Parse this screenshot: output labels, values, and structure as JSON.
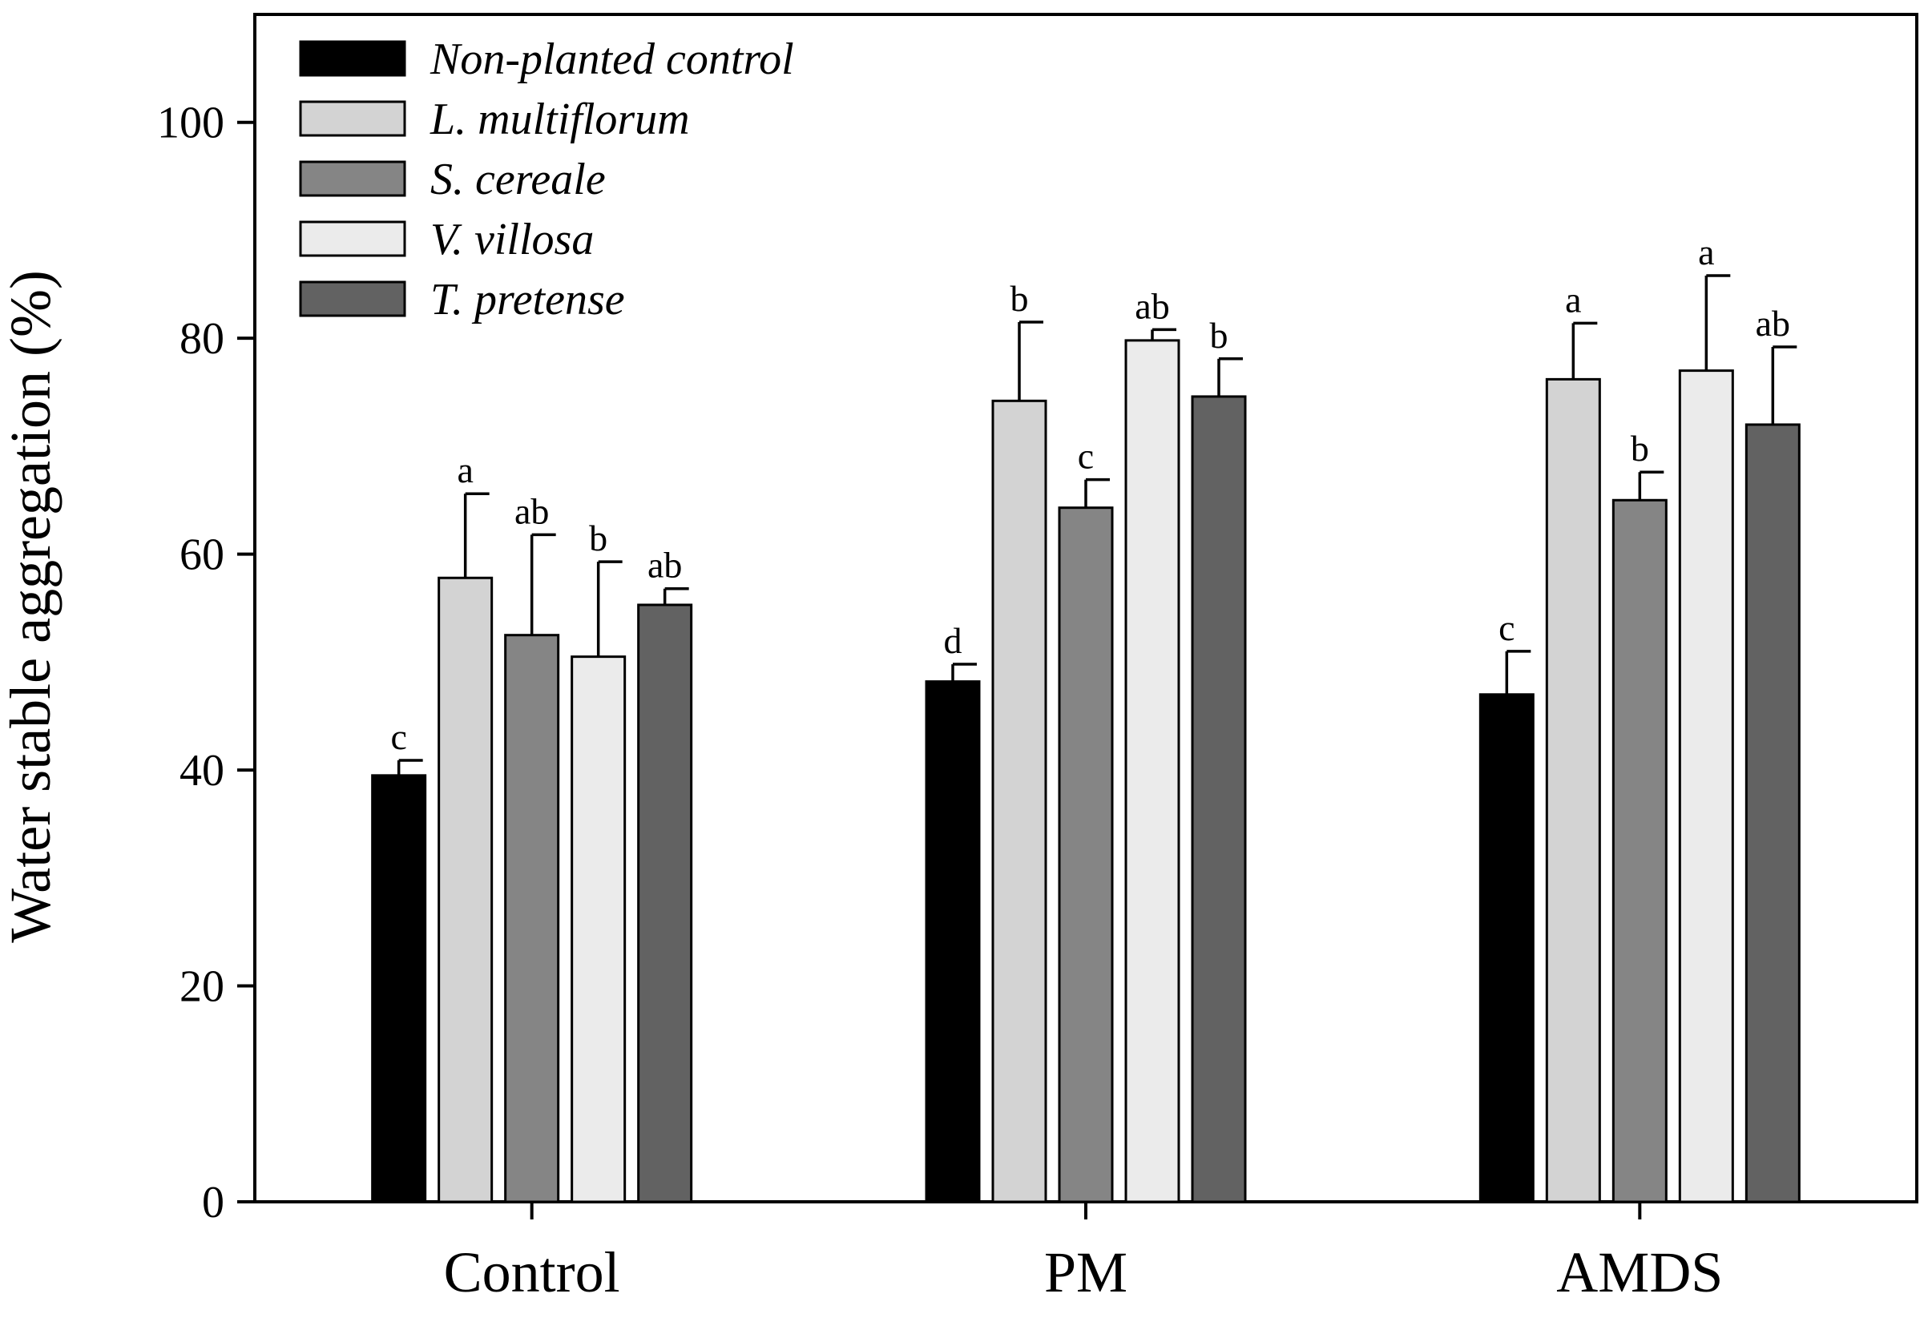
{
  "chart_data": {
    "type": "bar",
    "title": "",
    "xlabel": "",
    "ylabel": "Water stable aggregation (%)",
    "ylim": [
      0,
      110
    ],
    "yticks": [
      0,
      20,
      40,
      60,
      80,
      100
    ],
    "categories": [
      "Control",
      "PM",
      "AMDS"
    ],
    "legend_position": "top-left",
    "series": [
      {
        "name": "Non-planted control",
        "color": "#000000",
        "values": [
          39.5,
          48.2,
          47.0
        ],
        "errors": [
          1.4,
          1.6,
          4.0
        ],
        "letters": [
          "c",
          "d",
          "c"
        ]
      },
      {
        "name": "L. multiflorum",
        "color": "#d3d3d3",
        "values": [
          57.8,
          74.2,
          76.2
        ],
        "errors": [
          7.8,
          7.3,
          5.2
        ],
        "letters": [
          "a",
          "b",
          "a"
        ]
      },
      {
        "name": "S. cereale",
        "color": "#858585",
        "values": [
          52.5,
          64.3,
          65.0
        ],
        "errors": [
          9.3,
          2.6,
          2.6
        ],
        "letters": [
          "ab",
          "c",
          "b"
        ]
      },
      {
        "name": "V. villosa",
        "color": "#ebebeb",
        "values": [
          50.5,
          79.8,
          77.0
        ],
        "errors": [
          8.8,
          1.0,
          8.8
        ],
        "letters": [
          "b",
          "ab",
          "a"
        ]
      },
      {
        "name": "T. pretense",
        "color": "#626262",
        "values": [
          55.3,
          74.6,
          72.0
        ],
        "errors": [
          1.5,
          3.5,
          7.2
        ],
        "letters": [
          "ab",
          "b",
          "ab"
        ]
      }
    ]
  }
}
